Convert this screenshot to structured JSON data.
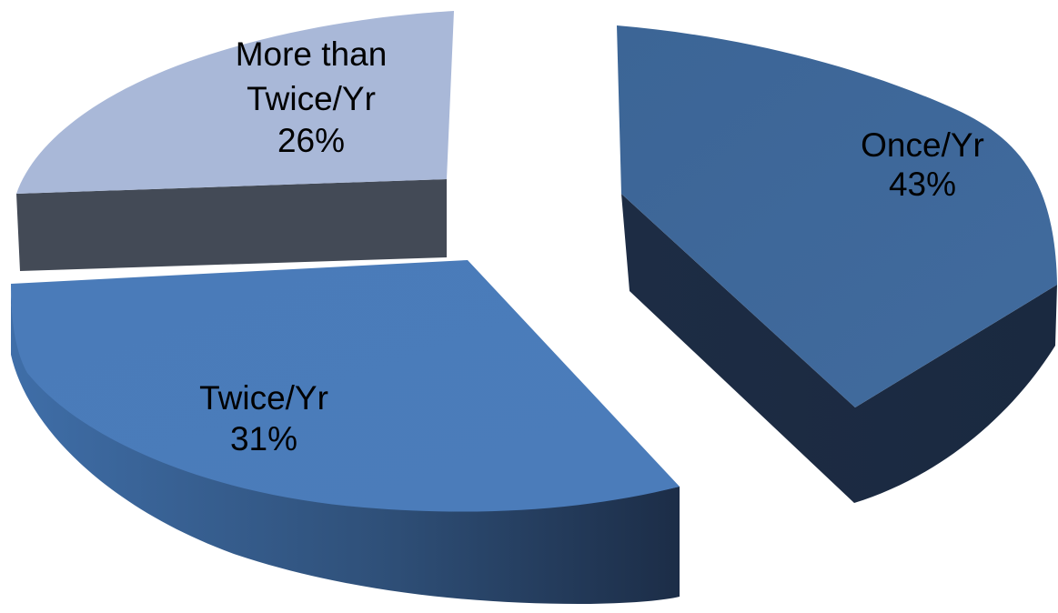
{
  "chart_data": {
    "type": "pie",
    "style": "3d-exploded",
    "slices": [
      {
        "name": "Once/Yr",
        "value": 43,
        "label": "43%",
        "color": "#3E6597"
      },
      {
        "name": "Twice/Yr",
        "value": 31,
        "label": "31%",
        "color": "#4A7AB8"
      },
      {
        "name": "More than Twice/Yr",
        "value": 26,
        "label": "26%",
        "color": "#A8B8D8"
      }
    ],
    "legend": "none"
  }
}
